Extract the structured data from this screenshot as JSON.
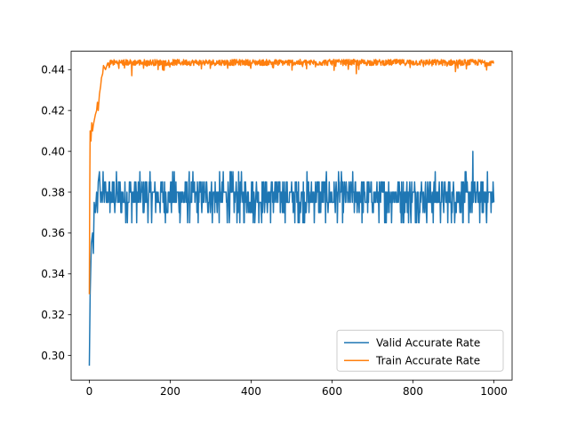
{
  "chart_data": {
    "type": "line",
    "xlim": [
      -45,
      1045
    ],
    "ylim": [
      0.288,
      0.449
    ],
    "xticks": [
      0,
      200,
      400,
      600,
      800,
      1000
    ],
    "yticks": [
      0.3,
      0.32,
      0.34,
      0.36,
      0.38,
      0.4,
      0.42,
      0.44
    ],
    "legend": {
      "position": "lower-right"
    },
    "grid": false,
    "series": [
      {
        "name": "Valid Accurate Rate",
        "color": "#1f77b4",
        "start": [
          [
            0,
            0.295
          ],
          [
            2,
            0.33
          ],
          [
            5,
            0.355
          ],
          [
            8,
            0.36
          ],
          [
            10,
            0.35
          ],
          [
            12,
            0.375
          ],
          [
            15,
            0.37
          ],
          [
            18,
            0.38
          ],
          [
            20,
            0.37
          ],
          [
            22,
            0.385
          ],
          [
            25,
            0.39
          ],
          [
            28,
            0.375
          ],
          [
            30,
            0.38
          ]
        ],
        "x_range": [
          30,
          1000
        ],
        "base": 0.3775,
        "jitter": 0.006,
        "step_choices": [
          0.365,
          0.37,
          0.375,
          0.38,
          0.385,
          0.39
        ],
        "spikes": [
          [
            948,
            0.4
          ],
          [
            949,
            0.375
          ]
        ],
        "end": [
          1000,
          0.375
        ]
      },
      {
        "name": "Train Accurate Rate",
        "color": "#ff7f0e",
        "start": [
          [
            0,
            0.33
          ],
          [
            1,
            0.38
          ],
          [
            2,
            0.41
          ],
          [
            4,
            0.405
          ],
          [
            6,
            0.414
          ],
          [
            8,
            0.41
          ],
          [
            10,
            0.413
          ],
          [
            12,
            0.415
          ],
          [
            15,
            0.418
          ],
          [
            18,
            0.42
          ],
          [
            20,
            0.424
          ],
          [
            22,
            0.42
          ],
          [
            25,
            0.428
          ],
          [
            28,
            0.432
          ],
          [
            30,
            0.436
          ],
          [
            33,
            0.438
          ],
          [
            35,
            0.442
          ],
          [
            40,
            0.44
          ],
          [
            45,
            0.443
          ]
        ],
        "x_range": [
          45,
          1000
        ],
        "base": 0.4435,
        "jitter": 0.0015,
        "dips": [
          [
            105,
            0.437
          ],
          [
            170,
            0.44
          ],
          [
            660,
            0.438
          ],
          [
            905,
            0.439
          ]
        ],
        "end": [
          1000,
          0.443
        ]
      }
    ]
  }
}
